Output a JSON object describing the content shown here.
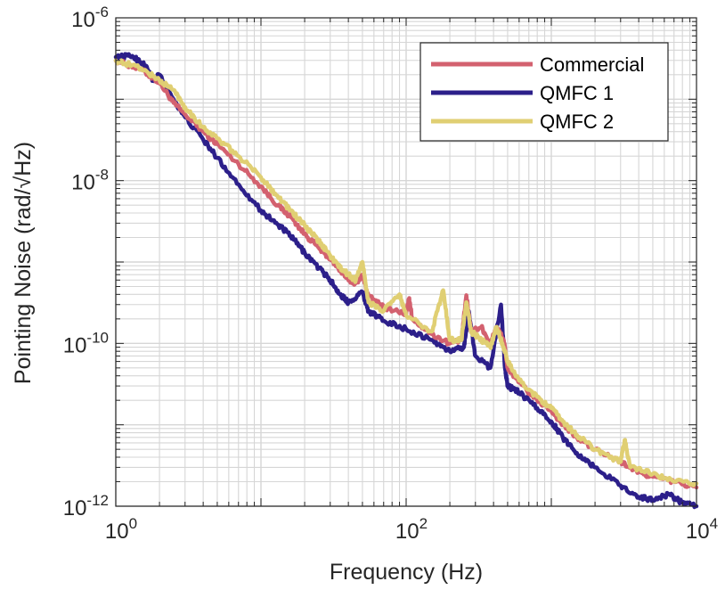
{
  "chart_data": {
    "type": "line",
    "title": "",
    "xlabel": "Frequency (Hz)",
    "ylabel": "Pointing Noise (rad/√Hz)",
    "xscale": "log",
    "yscale": "log",
    "xlim": [
      1,
      10000
    ],
    "ylim": [
      1e-12,
      1e-06
    ],
    "grid": true,
    "legend_position": "top-right",
    "x_tick_labels": [
      {
        "base": "10",
        "exp": "0"
      },
      {
        "base": "10",
        "exp": "2"
      },
      {
        "base": "10",
        "exp": "4"
      }
    ],
    "y_tick_labels": [
      {
        "base": "10",
        "exp": "-12"
      },
      {
        "base": "10",
        "exp": "-10"
      },
      {
        "base": "10",
        "exp": "-8"
      },
      {
        "base": "10",
        "exp": "-6"
      }
    ],
    "series": [
      {
        "name": "Commercial",
        "color": "#d3616f",
        "points": [
          [
            1.0,
            3e-07
          ],
          [
            1.5,
            2.3e-07
          ],
          [
            2.0,
            1.6e-07
          ],
          [
            2.5,
            9e-08
          ],
          [
            3.0,
            6.5e-08
          ],
          [
            4.0,
            4e-08
          ],
          [
            5.0,
            2.8e-08
          ],
          [
            7.0,
            1.6e-08
          ],
          [
            10.0,
            8.5e-09
          ],
          [
            13.0,
            5e-09
          ],
          [
            16.0,
            3.6e-09
          ],
          [
            20.0,
            2.2e-09
          ],
          [
            25.0,
            1.5e-09
          ],
          [
            30.0,
            1.1e-09
          ],
          [
            35.0,
            8e-10
          ],
          [
            40.0,
            6e-10
          ],
          [
            45.0,
            5.5e-10
          ],
          [
            50.0,
            7e-10
          ],
          [
            55.0,
            3.8e-10
          ],
          [
            70.0,
            2.8e-10
          ],
          [
            100.0,
            2.3e-10
          ],
          [
            105.0,
            3.6e-10
          ],
          [
            110.0,
            2e-10
          ],
          [
            150.0,
            1.3e-10
          ],
          [
            200.0,
            1e-10
          ],
          [
            240.0,
            1.1e-10
          ],
          [
            260.0,
            3.9e-10
          ],
          [
            280.0,
            1.4e-10
          ],
          [
            330.0,
            1.6e-10
          ],
          [
            380.0,
            1e-10
          ],
          [
            420.0,
            1.6e-10
          ],
          [
            470.0,
            1.1e-10
          ],
          [
            500.0,
            5e-11
          ],
          [
            600.0,
            3.3e-11
          ],
          [
            800.0,
            2e-11
          ],
          [
            1000.0,
            1.5e-11
          ],
          [
            1200.0,
            1e-11
          ],
          [
            1500.0,
            7e-12
          ],
          [
            2000.0,
            5e-12
          ],
          [
            3000.0,
            3.5e-12
          ],
          [
            4000.0,
            2.6e-12
          ],
          [
            5000.0,
            2.3e-12
          ],
          [
            7000.0,
            2e-12
          ],
          [
            10000.0,
            1.7e-12
          ]
        ]
      },
      {
        "name": "QMFC 1",
        "color": "#2c1f8a",
        "points": [
          [
            1.0,
            3.3e-07
          ],
          [
            1.3,
            3.4e-07
          ],
          [
            1.6,
            2.6e-07
          ],
          [
            1.8,
            1.7e-07
          ],
          [
            2.0,
            2e-07
          ],
          [
            2.5,
            1e-07
          ],
          [
            3.0,
            6e-08
          ],
          [
            4.0,
            3.2e-08
          ],
          [
            5.0,
            1.9e-08
          ],
          [
            7.0,
            9e-09
          ],
          [
            10.0,
            4.3e-09
          ],
          [
            13.0,
            2.9e-09
          ],
          [
            16.0,
            2.1e-09
          ],
          [
            20.0,
            1.3e-09
          ],
          [
            25.0,
            8.5e-10
          ],
          [
            30.0,
            6e-10
          ],
          [
            35.0,
            4e-10
          ],
          [
            40.0,
            3.2e-10
          ],
          [
            50.0,
            4.3e-10
          ],
          [
            55.0,
            2.5e-10
          ],
          [
            70.0,
            1.9e-10
          ],
          [
            100.0,
            1.5e-10
          ],
          [
            150.0,
            1.1e-10
          ],
          [
            200.0,
            8e-11
          ],
          [
            250.0,
            9e-11
          ],
          [
            270.0,
            2.5e-10
          ],
          [
            300.0,
            7e-11
          ],
          [
            380.0,
            5e-11
          ],
          [
            450.0,
            3e-10
          ],
          [
            480.0,
            5e-11
          ],
          [
            500.0,
            3e-11
          ],
          [
            600.0,
            2.5e-11
          ],
          [
            800.0,
            1.6e-11
          ],
          [
            1000.0,
            1.1e-11
          ],
          [
            1200.0,
            7e-12
          ],
          [
            1500.0,
            4.5e-12
          ],
          [
            2000.0,
            3e-12
          ],
          [
            3000.0,
            1.8e-12
          ],
          [
            4000.0,
            1.3e-12
          ],
          [
            5000.0,
            1.2e-12
          ],
          [
            6500.0,
            1.4e-12
          ],
          [
            8000.0,
            1.1e-12
          ],
          [
            10000.0,
            1e-12
          ]
        ]
      },
      {
        "name": "QMFC 2",
        "color": "#e0cf73",
        "points": [
          [
            1.0,
            3e-07
          ],
          [
            1.5,
            2.4e-07
          ],
          [
            2.0,
            1.7e-07
          ],
          [
            2.5,
            1.3e-07
          ],
          [
            3.0,
            8e-08
          ],
          [
            4.0,
            4.5e-08
          ],
          [
            5.0,
            3.3e-08
          ],
          [
            7.0,
            2e-08
          ],
          [
            10.0,
            1.1e-08
          ],
          [
            13.0,
            6.5e-09
          ],
          [
            16.0,
            4.3e-09
          ],
          [
            20.0,
            2.8e-09
          ],
          [
            25.0,
            1.8e-09
          ],
          [
            30.0,
            1.2e-09
          ],
          [
            35.0,
            8.5e-10
          ],
          [
            40.0,
            7e-10
          ],
          [
            45.0,
            6e-10
          ],
          [
            50.0,
            1e-09
          ],
          [
            55.0,
            3.2e-10
          ],
          [
            70.0,
            2.5e-10
          ],
          [
            90.0,
            4e-10
          ],
          [
            100.0,
            2.2e-10
          ],
          [
            150.0,
            1.4e-10
          ],
          [
            180.0,
            4.5e-10
          ],
          [
            200.0,
            1.1e-10
          ],
          [
            240.0,
            1.1e-10
          ],
          [
            260.0,
            3.2e-10
          ],
          [
            280.0,
            1.4e-10
          ],
          [
            330.0,
            1.1e-10
          ],
          [
            380.0,
            9e-11
          ],
          [
            420.0,
            1.6e-10
          ],
          [
            460.0,
            1e-10
          ],
          [
            500.0,
            6e-11
          ],
          [
            600.0,
            3.5e-11
          ],
          [
            800.0,
            2.2e-11
          ],
          [
            1000.0,
            1.6e-11
          ],
          [
            1200.0,
            1.1e-11
          ],
          [
            1500.0,
            7.5e-12
          ],
          [
            2000.0,
            5e-12
          ],
          [
            3000.0,
            3.5e-12
          ],
          [
            3200.0,
            6.5e-12
          ],
          [
            3500.0,
            3e-12
          ],
          [
            5000.0,
            2.5e-12
          ],
          [
            7000.0,
            2e-12
          ],
          [
            10000.0,
            1.9e-12
          ]
        ]
      }
    ]
  }
}
